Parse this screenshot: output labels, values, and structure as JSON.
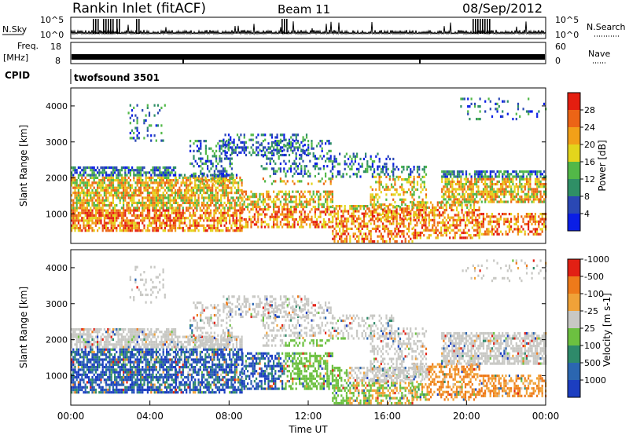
{
  "header": {
    "title": "Rankin Inlet (fitACF)",
    "beam": "Beam 11",
    "date": "08/Sep/2012"
  },
  "panels": {
    "nsky_label": "N.Sky",
    "nsearch_label": "N.Search",
    "nsky_tick_hi": "10^5",
    "nsky_tick_lo": "10^0",
    "freq_label_1": "Freq.",
    "freq_label_2": "[MHz]",
    "freq_tick_hi": "18",
    "freq_tick_lo": "8",
    "nave_label": "Nave",
    "nave_tick_hi": "60",
    "nave_tick_lo": "0",
    "cpid_label": "CPID",
    "cpid_value": "twofsound 3501"
  },
  "chart_data": [
    {
      "type": "heatmap",
      "title": "",
      "ylabel": "Slant Range [km]",
      "xlabel": "",
      "ylim": [
        180,
        4500
      ],
      "yticks": [
        "1000",
        "2000",
        "3000",
        "4000"
      ],
      "colorbar": {
        "label": "Power [dB]",
        "ticks": [
          "4",
          "8",
          "12",
          "16",
          "20",
          "24",
          "28"
        ],
        "colors": [
          "#0a1ee6",
          "#2a48b4",
          "#2f8f66",
          "#52b848",
          "#e3d51c",
          "#f2a018",
          "#ec6416",
          "#e41e10"
        ]
      }
    },
    {
      "type": "heatmap",
      "title": "",
      "ylabel": "Slant Range [km]",
      "xlabel": "Time UT",
      "ylim": [
        180,
        4500
      ],
      "yticks": [
        "1000",
        "2000",
        "3000",
        "4000"
      ],
      "xticks": [
        "00:00",
        "04:00",
        "08:00",
        "12:00",
        "16:00",
        "20:00",
        "00:00"
      ],
      "colorbar": {
        "label": "Velocity [m s-1]",
        "ticks": [
          "1000",
          "500",
          "100",
          "25",
          "-25",
          "-100",
          "-500",
          "-1000"
        ],
        "colors": [
          "#1c3ec0",
          "#2b66b0",
          "#2e8a6a",
          "#6cc040",
          "#c8c8c4",
          "#f0a238",
          "#ee7a1a",
          "#e22014"
        ]
      }
    }
  ]
}
